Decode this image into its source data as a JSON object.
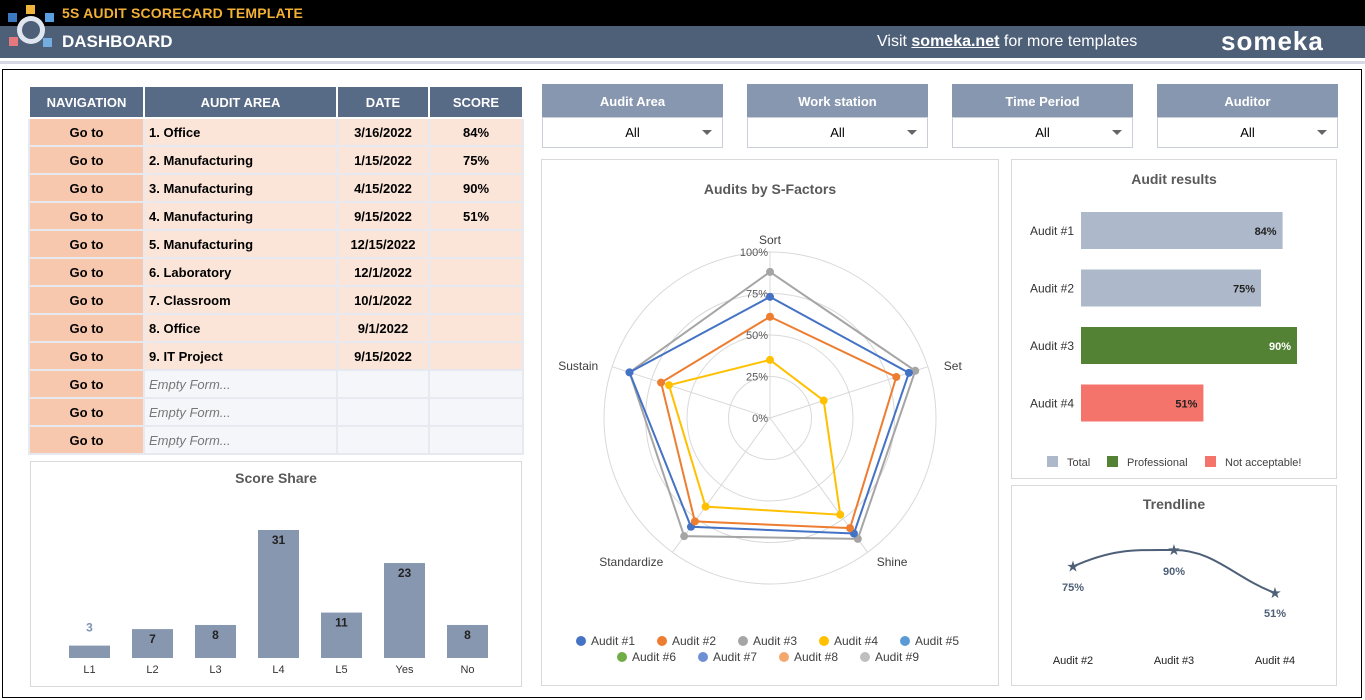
{
  "header": {
    "app_title": "5S AUDIT SCORECARD TEMPLATE",
    "page_title": "DASHBOARD",
    "promo_prefix": "Visit ",
    "promo_link": "someka.net",
    "promo_suffix": " for more templates",
    "brand": "someka"
  },
  "table": {
    "headers": [
      "NAVIGATION",
      "AUDIT AREA",
      "DATE",
      "SCORE"
    ],
    "rows": [
      {
        "nav": "Go to",
        "area": "1. Office",
        "date": "3/16/2022",
        "score": "84%"
      },
      {
        "nav": "Go to",
        "area": "2. Manufacturing",
        "date": "1/15/2022",
        "score": "75%"
      },
      {
        "nav": "Go to",
        "area": "3. Manufacturing",
        "date": "4/15/2022",
        "score": "90%"
      },
      {
        "nav": "Go to",
        "area": "4. Manufacturing",
        "date": "9/15/2022",
        "score": "51%"
      },
      {
        "nav": "Go to",
        "area": "5. Manufacturing",
        "date": "12/15/2022",
        "score": ""
      },
      {
        "nav": "Go to",
        "area": "6. Laboratory",
        "date": "12/1/2022",
        "score": ""
      },
      {
        "nav": "Go to",
        "area": "7. Classroom",
        "date": "10/1/2022",
        "score": ""
      },
      {
        "nav": "Go to",
        "area": "8. Office",
        "date": "9/1/2022",
        "score": ""
      },
      {
        "nav": "Go to",
        "area": "9. IT Project",
        "date": "9/15/2022",
        "score": ""
      },
      {
        "nav": "Go to",
        "area": "Empty Form...",
        "date": "",
        "score": "",
        "empty": true
      },
      {
        "nav": "Go to",
        "area": "Empty Form...",
        "date": "",
        "score": "",
        "empty": true
      },
      {
        "nav": "Go to",
        "area": "Empty Form...",
        "date": "",
        "score": "",
        "empty": true
      }
    ]
  },
  "filters": [
    {
      "label": "Audit Area",
      "value": "All"
    },
    {
      "label": "Work station",
      "value": "All"
    },
    {
      "label": "Time Period",
      "value": "All"
    },
    {
      "label": "Auditor",
      "value": "All"
    }
  ],
  "icons": {
    "dropdown": "chevron-down-icon",
    "logo": "someka-5s-logo"
  },
  "colors": {
    "header_bg": "#4e6078",
    "table_header": "#576a86",
    "goto_cell": "#f7c8ae",
    "row_cell": "#fbe5d8",
    "bar": "#8797b0",
    "total": "#adb9ca",
    "professional": "#548235",
    "not_acceptable": "#f4736b"
  },
  "charts": {
    "score_share_title": "Score Share",
    "radar_title": "Audits by S-Factors",
    "results_title": "Audit results",
    "trend_title": "Trendline"
  },
  "chart_data": [
    {
      "type": "bar",
      "title": "Score Share",
      "categories": [
        "L1",
        "L2",
        "L3",
        "L4",
        "L5",
        "Yes",
        "No"
      ],
      "values": [
        3,
        7,
        8,
        31,
        11,
        23,
        8
      ]
    },
    {
      "type": "radar",
      "title": "Audits by S-Factors",
      "axes": [
        "Sort",
        "Set",
        "Shine",
        "Standardize",
        "Sustain"
      ],
      "tick_labels": [
        "0%",
        "25%",
        "50%",
        "75%",
        "100%"
      ],
      "ylim": [
        0,
        1
      ],
      "legend_position": "bottom",
      "series": [
        {
          "name": "Audit #1",
          "color": "#4472c4",
          "values": [
            0.73,
            0.88,
            0.86,
            0.81,
            0.89
          ]
        },
        {
          "name": "Audit #2",
          "color": "#ed7d31",
          "values": [
            0.61,
            0.8,
            0.82,
            0.77,
            0.69
          ]
        },
        {
          "name": "Audit #3",
          "color": "#a5a5a5",
          "values": [
            0.88,
            0.92,
            0.9,
            0.88,
            0.89
          ]
        },
        {
          "name": "Audit #4",
          "color": "#ffc000",
          "values": [
            0.35,
            0.34,
            0.72,
            0.66,
            0.64
          ]
        },
        {
          "name": "Audit #5",
          "color": "#5b9bd5",
          "values": []
        },
        {
          "name": "Audit #6",
          "color": "#70ad47",
          "values": []
        },
        {
          "name": "Audit #7",
          "color": "#6f8fd4",
          "values": []
        },
        {
          "name": "Audit #8",
          "color": "#f4a86e",
          "values": []
        },
        {
          "name": "Audit #9",
          "color": "#bfbfbf",
          "values": []
        }
      ]
    },
    {
      "type": "bar",
      "orientation": "horizontal",
      "title": "Audit results",
      "categories": [
        "Audit #1",
        "Audit #2",
        "Audit #3",
        "Audit #4"
      ],
      "values": [
        0.84,
        0.75,
        0.9,
        0.51
      ],
      "labels": [
        "84%",
        "75%",
        "90%",
        "51%"
      ],
      "status": [
        "Total",
        "Total",
        "Professional",
        "Not acceptable!"
      ],
      "legend": [
        "Total",
        "Professional",
        "Not acceptable!"
      ],
      "legend_position": "bottom"
    },
    {
      "type": "line",
      "title": "Trendline",
      "categories": [
        "Audit #2",
        "Audit #3",
        "Audit #4"
      ],
      "values": [
        0.75,
        0.9,
        0.51
      ],
      "labels": [
        "75%",
        "90%",
        "51%"
      ]
    }
  ]
}
